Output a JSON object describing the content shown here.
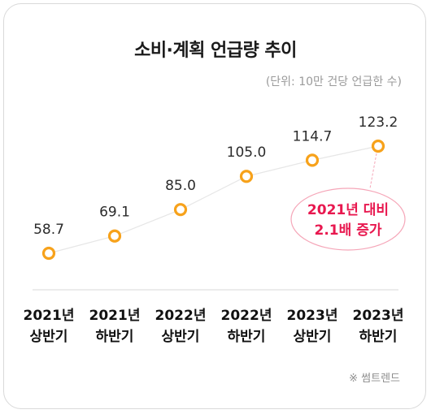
{
  "title": "소비·계획 언급량 추이",
  "unit_note": "(단위: 10만 건당 언급한 수)",
  "source_note": "※ 썸트렌드",
  "annotation": {
    "line1": "2021년 대비",
    "line2": "2.1배 증가"
  },
  "colors": {
    "point": "#f7a21b",
    "line": "#e6e6e6",
    "annotation_text": "#e8184f",
    "annotation_border": "#f5a6b8",
    "axis": "#d9d9d9"
  },
  "chart_data": {
    "type": "line",
    "categories": [
      [
        "2021년",
        "상반기"
      ],
      [
        "2021년",
        "하반기"
      ],
      [
        "2022년",
        "상반기"
      ],
      [
        "2022년",
        "하반기"
      ],
      [
        "2023년",
        "상반기"
      ],
      [
        "2023년",
        "하반기"
      ]
    ],
    "values": [
      58.7,
      69.1,
      85.0,
      105.0,
      114.7,
      123.2
    ],
    "value_labels": [
      "58.7",
      "69.1",
      "85.0",
      "105.0",
      "114.7",
      "123.2"
    ],
    "title": "소비·계획 언급량 추이",
    "xlabel": "",
    "ylabel": "",
    "ylim": [
      40,
      135
    ],
    "grid": false
  }
}
